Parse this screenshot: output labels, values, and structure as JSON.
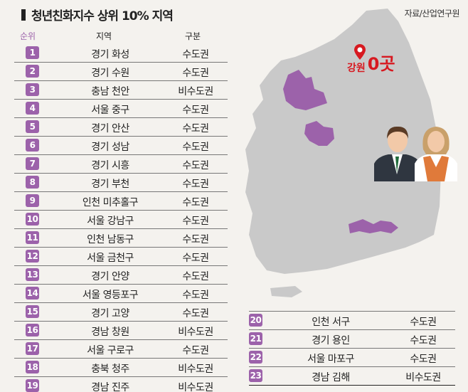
{
  "title": "청년친화지수 상위 10% 지역",
  "source": "자료/산업연구원",
  "headers": {
    "rank": "순위",
    "region": "지역",
    "category": "구분"
  },
  "map_callout": {
    "region": "강원",
    "count": "0곳"
  },
  "colors": {
    "accent": "#9c62aa",
    "highlight": "#d71920",
    "map": "#c9c9c9"
  },
  "rows": [
    {
      "rank": "1",
      "region": "경기 화성",
      "category": "수도권"
    },
    {
      "rank": "2",
      "region": "경기 수원",
      "category": "수도권"
    },
    {
      "rank": "3",
      "region": "충남 천안",
      "category": "비수도권"
    },
    {
      "rank": "4",
      "region": "서울 중구",
      "category": "수도권"
    },
    {
      "rank": "5",
      "region": "경기 안산",
      "category": "수도권"
    },
    {
      "rank": "6",
      "region": "경기 성남",
      "category": "수도권"
    },
    {
      "rank": "7",
      "region": "경기 시흥",
      "category": "수도권"
    },
    {
      "rank": "8",
      "region": "경기 부천",
      "category": "수도권"
    },
    {
      "rank": "9",
      "region": "인천 미추홀구",
      "category": "수도권"
    },
    {
      "rank": "10",
      "region": "서울 강남구",
      "category": "수도권"
    },
    {
      "rank": "11",
      "region": "인천 남동구",
      "category": "수도권"
    },
    {
      "rank": "12",
      "region": "서울 금천구",
      "category": "수도권"
    },
    {
      "rank": "13",
      "region": "경기 안양",
      "category": "수도권"
    },
    {
      "rank": "14",
      "region": "서울 영등포구",
      "category": "수도권"
    },
    {
      "rank": "15",
      "region": "경기 고양",
      "category": "수도권"
    },
    {
      "rank": "16",
      "region": "경남 창원",
      "category": "비수도권"
    },
    {
      "rank": "17",
      "region": "서울 구로구",
      "category": "수도권"
    },
    {
      "rank": "18",
      "region": "충북 청주",
      "category": "비수도권"
    },
    {
      "rank": "19",
      "region": "경남 진주",
      "category": "비수도권"
    },
    {
      "rank": "20",
      "region": "인천 서구",
      "category": "수도권"
    },
    {
      "rank": "21",
      "region": "경기 용인",
      "category": "수도권"
    },
    {
      "rank": "22",
      "region": "서울 마포구",
      "category": "수도권"
    },
    {
      "rank": "23",
      "region": "경남 김해",
      "category": "비수도권"
    }
  ]
}
